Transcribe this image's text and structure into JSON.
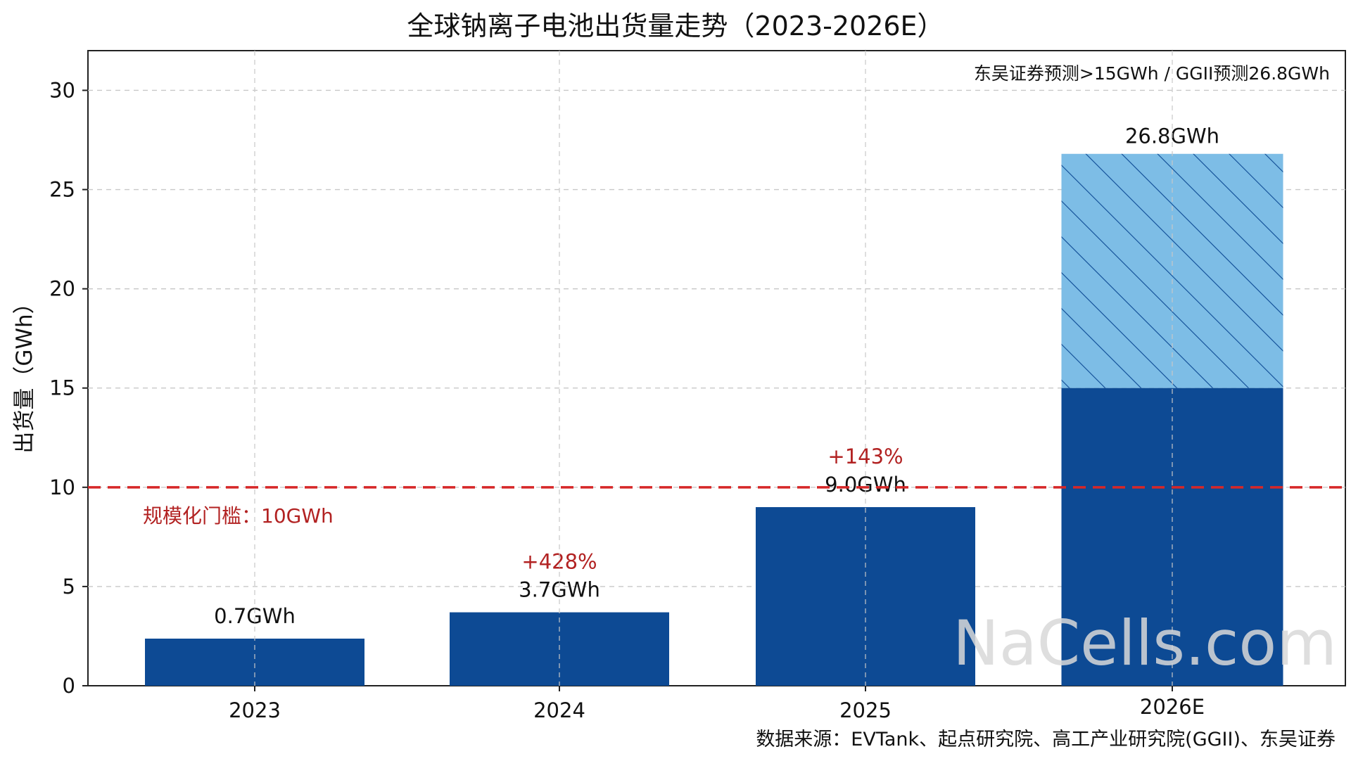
{
  "chart_data": {
    "type": "bar",
    "title": "全球钠离子电池出货量走势（2023-2026E）",
    "ylabel": "出货量（GWh）",
    "xlabel": "",
    "ylim": [
      0,
      32
    ],
    "yticks": [
      0,
      5,
      10,
      15,
      20,
      25,
      30
    ],
    "grid": true,
    "categories": [
      "2023",
      "2024",
      "2025",
      "2026E"
    ],
    "values": [
      0.7,
      3.7,
      9.0,
      26.8
    ],
    "value_labels": [
      "0.7GWh",
      "3.7GWh",
      "9.0GWh",
      "26.8GWh"
    ],
    "growth_labels": [
      "",
      "+428%",
      "+143%",
      ""
    ],
    "forecast": {
      "category": "2026E",
      "lower_value": 15,
      "upper_value": 26.8,
      "note": "东吴证券预测>15GWh / GGII预测26.8GWh"
    },
    "threshold": {
      "value": 10,
      "label": "规模化门槛：10GWh",
      "color": "#d62728"
    },
    "colors": {
      "bar": "#0d4a94",
      "forecast_fill": "#7dbde6",
      "forecast_hatch": "#0d4a94",
      "growth_text": "#b22222",
      "watermark": "#d9d9d9"
    }
  },
  "source": "数据来源：EVTank、起点研究院、高工产业研究院(GGII)、东吴证券",
  "watermark": "NaCells.com"
}
